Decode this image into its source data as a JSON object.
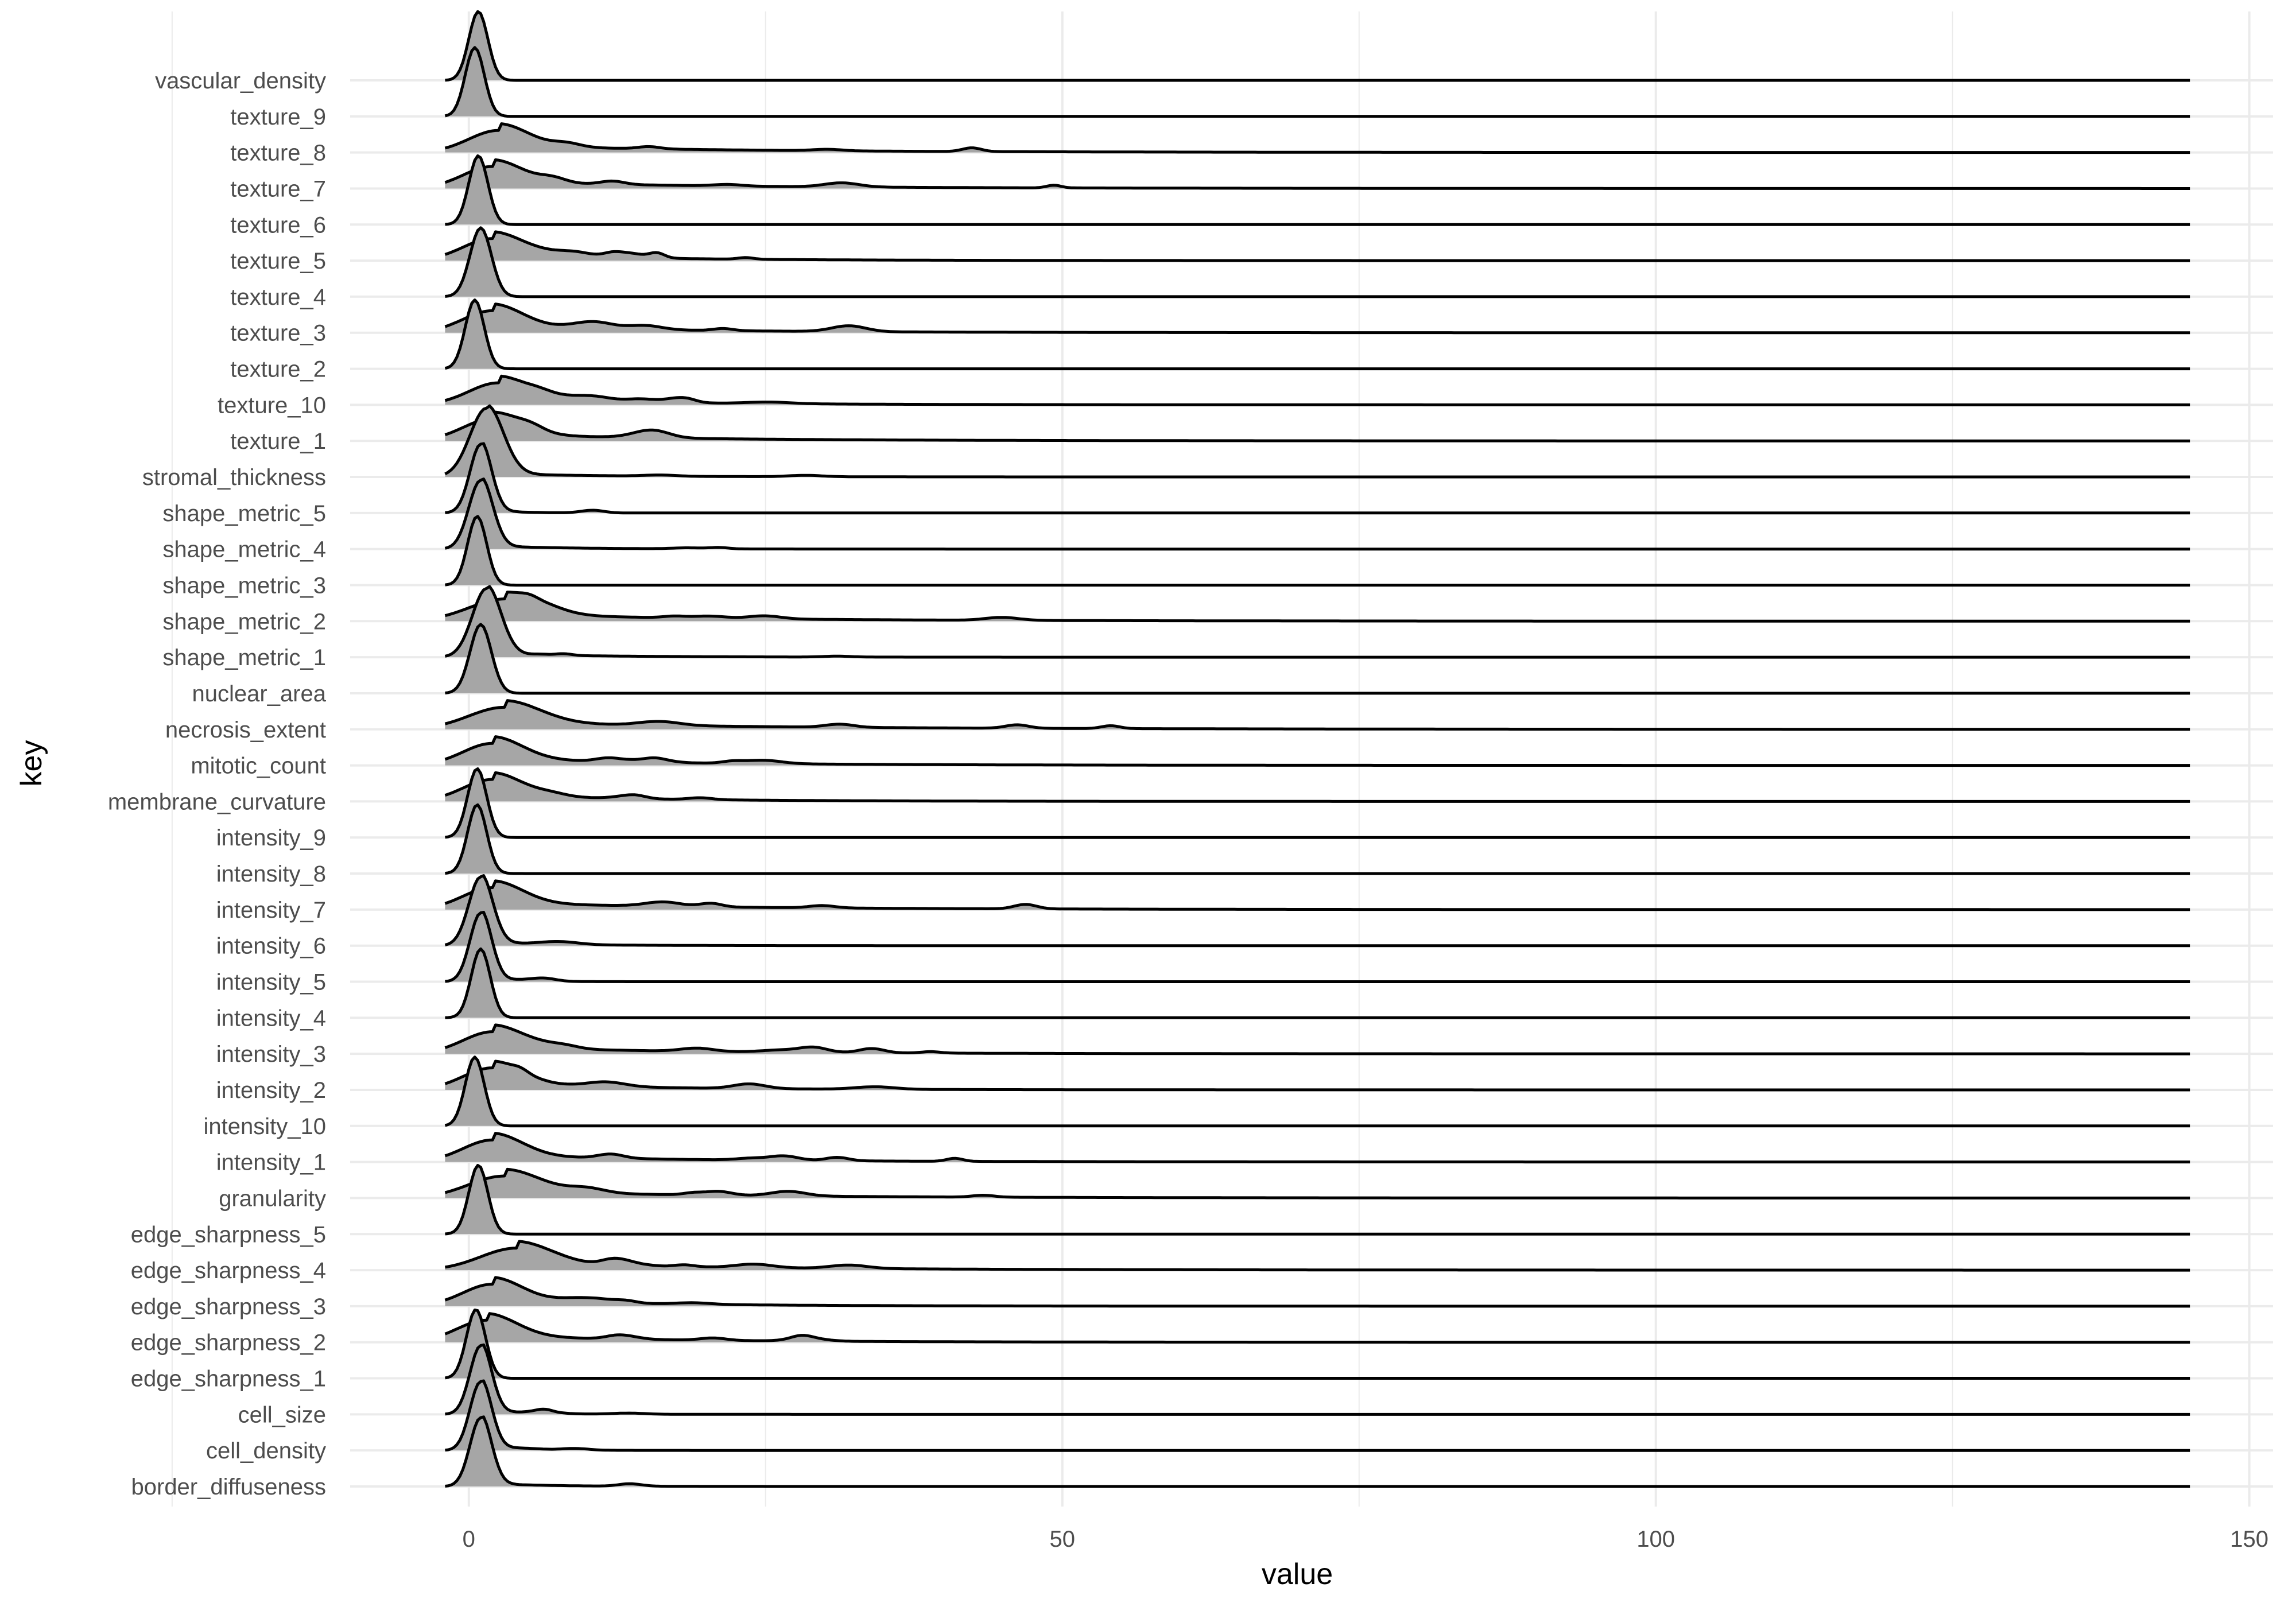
{
  "chart_data": {
    "type": "ridgeline",
    "xlabel": "value",
    "ylabel": "key",
    "xlim": [
      -10,
      152
    ],
    "x_ticks": [
      0,
      50,
      100,
      150
    ],
    "x_tick_labels": [
      "0",
      "50",
      "100",
      "150"
    ],
    "x_range_of_ridges": [
      -2,
      145
    ],
    "grid": true,
    "legend": "none",
    "fill_color": "#a6a6a6",
    "line_color": "#000000",
    "series": [
      {
        "name": "border_diffuseness",
        "kind": "spike",
        "peak_x": 1.0,
        "spread": 0.9,
        "tail_to": 15
      },
      {
        "name": "cell_density",
        "kind": "spike",
        "peak_x": 1.0,
        "spread": 0.9,
        "tail_to": 10
      },
      {
        "name": "cell_size",
        "kind": "spike",
        "peak_x": 1.0,
        "spread": 0.9,
        "tail_to": 12
      },
      {
        "name": "edge_sharpness_1",
        "kind": "spike",
        "peak_x": 0.6,
        "spread": 0.8,
        "tail_to": 4
      },
      {
        "name": "edge_sharpness_2",
        "kind": "wide",
        "peak_x": 1.5,
        "spread": 2.5,
        "tail_to": 45
      },
      {
        "name": "edge_sharpness_3",
        "kind": "wide",
        "peak_x": 2.0,
        "spread": 2.5,
        "tail_to": 40
      },
      {
        "name": "edge_sharpness_4",
        "kind": "wide",
        "peak_x": 4.0,
        "spread": 3.0,
        "tail_to": 60
      },
      {
        "name": "edge_sharpness_5",
        "kind": "spike",
        "peak_x": 0.8,
        "spread": 0.8,
        "tail_to": 4
      },
      {
        "name": "granularity",
        "kind": "wide",
        "peak_x": 3.0,
        "spread": 3.0,
        "tail_to": 60
      },
      {
        "name": "intensity_1",
        "kind": "wide",
        "peak_x": 2.0,
        "spread": 2.5,
        "tail_to": 50
      },
      {
        "name": "intensity_10",
        "kind": "spike",
        "peak_x": 0.5,
        "spread": 0.8,
        "tail_to": 4
      },
      {
        "name": "intensity_2",
        "kind": "wide",
        "peak_x": 2.0,
        "spread": 2.5,
        "tail_to": 40
      },
      {
        "name": "intensity_3",
        "kind": "wide",
        "peak_x": 2.0,
        "spread": 2.5,
        "tail_to": 50
      },
      {
        "name": "intensity_4",
        "kind": "spike",
        "peak_x": 1.0,
        "spread": 0.8,
        "tail_to": 4
      },
      {
        "name": "intensity_5",
        "kind": "spike",
        "peak_x": 1.0,
        "spread": 0.9,
        "tail_to": 8
      },
      {
        "name": "intensity_6",
        "kind": "spike",
        "peak_x": 1.0,
        "spread": 1.0,
        "tail_to": 20
      },
      {
        "name": "intensity_7",
        "kind": "wide",
        "peak_x": 2.0,
        "spread": 2.5,
        "tail_to": 60
      },
      {
        "name": "intensity_8",
        "kind": "spike",
        "peak_x": 0.7,
        "spread": 0.8,
        "tail_to": 4
      },
      {
        "name": "intensity_9",
        "kind": "spike",
        "peak_x": 0.7,
        "spread": 0.8,
        "tail_to": 4
      },
      {
        "name": "membrane_curvature",
        "kind": "wide",
        "peak_x": 2.0,
        "spread": 2.5,
        "tail_to": 40
      },
      {
        "name": "mitotic_count",
        "kind": "wide",
        "peak_x": 2.0,
        "spread": 2.5,
        "tail_to": 50
      },
      {
        "name": "necrosis_extent",
        "kind": "wide",
        "peak_x": 3.0,
        "spread": 3.0,
        "tail_to": 70
      },
      {
        "name": "nuclear_area",
        "kind": "spike",
        "peak_x": 1.0,
        "spread": 0.9,
        "tail_to": 4
      },
      {
        "name": "shape_metric_1",
        "kind": "spike",
        "peak_x": 1.5,
        "spread": 1.2,
        "tail_to": 30
      },
      {
        "name": "shape_metric_2",
        "kind": "wide",
        "peak_x": 3.0,
        "spread": 3.0,
        "tail_to": 60
      },
      {
        "name": "shape_metric_3",
        "kind": "spike",
        "peak_x": 0.7,
        "spread": 0.8,
        "tail_to": 4
      },
      {
        "name": "shape_metric_4",
        "kind": "spike",
        "peak_x": 1.0,
        "spread": 1.0,
        "tail_to": 20
      },
      {
        "name": "shape_metric_5",
        "kind": "spike",
        "peak_x": 1.0,
        "spread": 0.9,
        "tail_to": 8
      },
      {
        "name": "stromal_thickness",
        "kind": "spike",
        "peak_x": 1.5,
        "spread": 1.4,
        "tail_to": 30
      },
      {
        "name": "texture_1",
        "kind": "wide",
        "peak_x": 2.0,
        "spread": 2.5,
        "tail_to": 50
      },
      {
        "name": "texture_10",
        "kind": "wide",
        "peak_x": 2.5,
        "spread": 2.5,
        "tail_to": 40
      },
      {
        "name": "texture_2",
        "kind": "spike",
        "peak_x": 0.5,
        "spread": 0.8,
        "tail_to": 4
      },
      {
        "name": "texture_3",
        "kind": "wide",
        "peak_x": 2.0,
        "spread": 2.5,
        "tail_to": 50
      },
      {
        "name": "texture_4",
        "kind": "spike",
        "peak_x": 1.0,
        "spread": 0.9,
        "tail_to": 4
      },
      {
        "name": "texture_5",
        "kind": "wide",
        "peak_x": 2.0,
        "spread": 2.5,
        "tail_to": 40
      },
      {
        "name": "texture_6",
        "kind": "spike",
        "peak_x": 0.8,
        "spread": 0.8,
        "tail_to": 4
      },
      {
        "name": "texture_7",
        "kind": "wide",
        "peak_x": 2.0,
        "spread": 2.5,
        "tail_to": 60
      },
      {
        "name": "texture_8",
        "kind": "wide",
        "peak_x": 2.5,
        "spread": 2.5,
        "tail_to": 60
      },
      {
        "name": "texture_9",
        "kind": "spike",
        "peak_x": 0.5,
        "spread": 0.8,
        "tail_to": 4
      },
      {
        "name": "vascular_density",
        "kind": "spike",
        "peak_x": 0.8,
        "spread": 0.8,
        "tail_to": 4
      }
    ]
  }
}
